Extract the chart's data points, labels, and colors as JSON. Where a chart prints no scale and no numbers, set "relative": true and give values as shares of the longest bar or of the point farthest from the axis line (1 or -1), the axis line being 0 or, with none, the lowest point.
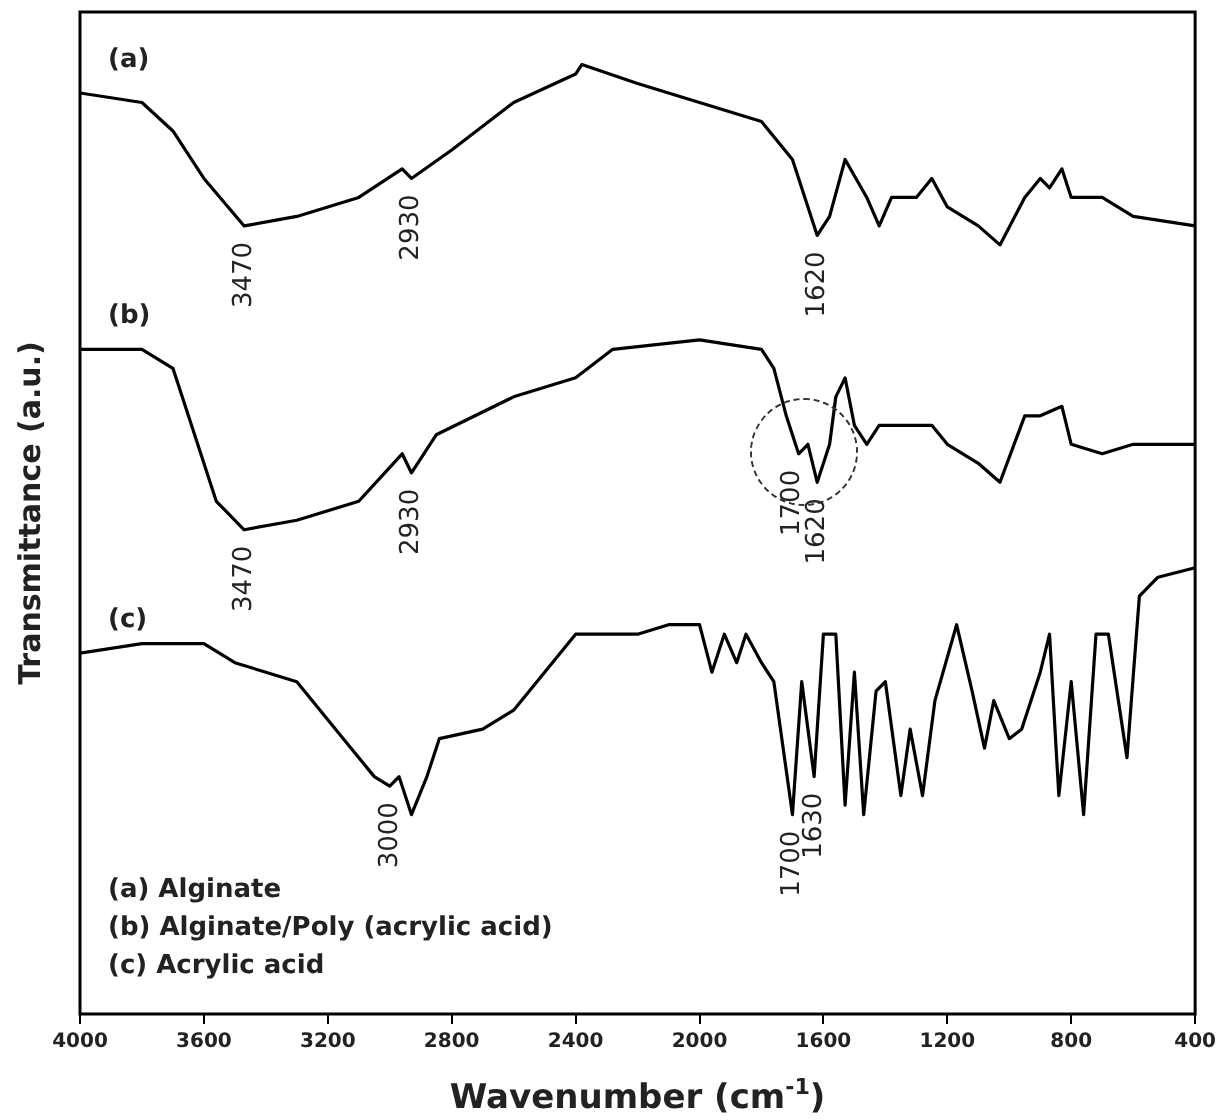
{
  "chart_data": {
    "type": "line",
    "relative": true,
    "xlabel": "Wavenumber (cm$^{-1}$)",
    "ylabel": "Transmittance (a.u.)",
    "xlim": [
      4000,
      400
    ],
    "xticks": [
      4000,
      3600,
      3200,
      2800,
      2400,
      2000,
      1600,
      1200,
      800,
      400
    ],
    "marker": "none",
    "line_style": "solid",
    "series": [
      {
        "name": "(a)",
        "color": "#000000",
        "x": [
          4000,
          3800,
          3700,
          3600,
          3470,
          3300,
          3100,
          2960,
          2930,
          2800,
          2600,
          2400,
          2380,
          2200,
          2000,
          1800,
          1700,
          1620,
          1580,
          1530,
          1460,
          1420,
          1380,
          1300,
          1250,
          1200,
          1100,
          1030,
          950,
          900,
          870,
          830,
          800,
          700,
          600,
          400
        ],
        "values": [
          0.97,
          0.96,
          0.93,
          0.88,
          0.83,
          0.84,
          0.86,
          0.89,
          0.88,
          0.91,
          0.96,
          0.99,
          1,
          0.98,
          0.96,
          0.94,
          0.9,
          0.82,
          0.84,
          0.9,
          0.86,
          0.83,
          0.86,
          0.86,
          0.88,
          0.85,
          0.83,
          0.81,
          0.86,
          0.88,
          0.87,
          0.89,
          0.86,
          0.86,
          0.84,
          0.83
        ]
      },
      {
        "name": "(b)",
        "color": "#000000",
        "x": [
          4000,
          3800,
          3700,
          3620,
          3560,
          3470,
          3300,
          3100,
          2960,
          2930,
          2850,
          2600,
          2400,
          2360,
          2280,
          2000,
          1800,
          1760,
          1720,
          1680,
          1650,
          1620,
          1580,
          1560,
          1530,
          1500,
          1460,
          1420,
          1300,
          1250,
          1200,
          1100,
          1030,
          950,
          900,
          830,
          800,
          700,
          600,
          400
        ],
        "values": [
          0.7,
          0.7,
          0.68,
          0.6,
          0.54,
          0.51,
          0.52,
          0.54,
          0.59,
          0.57,
          0.61,
          0.65,
          0.67,
          0.68,
          0.7,
          0.71,
          0.7,
          0.68,
          0.63,
          0.59,
          0.6,
          0.56,
          0.6,
          0.65,
          0.67,
          0.62,
          0.6,
          0.62,
          0.62,
          0.62,
          0.6,
          0.58,
          0.56,
          0.63,
          0.63,
          0.64,
          0.6,
          0.59,
          0.6,
          0.6
        ]
      },
      {
        "name": "(c)",
        "color": "#000000",
        "x": [
          4000,
          3800,
          3600,
          3500,
          3300,
          3150,
          3050,
          3000,
          2970,
          2930,
          2880,
          2840,
          2700,
          2600,
          2400,
          2200,
          2100,
          2000,
          1960,
          1920,
          1880,
          1850,
          1800,
          1760,
          1700,
          1670,
          1630,
          1600,
          1560,
          1530,
          1500,
          1470,
          1430,
          1400,
          1350,
          1320,
          1280,
          1240,
          1170,
          1120,
          1080,
          1050,
          1000,
          960,
          900,
          870,
          840,
          800,
          760,
          720,
          680,
          620,
          580,
          520,
          400
        ],
        "values": [
          0.38,
          0.39,
          0.39,
          0.37,
          0.35,
          0.29,
          0.25,
          0.24,
          0.25,
          0.21,
          0.25,
          0.29,
          0.3,
          0.32,
          0.4,
          0.4,
          0.41,
          0.41,
          0.36,
          0.4,
          0.37,
          0.4,
          0.37,
          0.35,
          0.21,
          0.35,
          0.25,
          0.4,
          0.4,
          0.22,
          0.36,
          0.21,
          0.34,
          0.35,
          0.23,
          0.3,
          0.23,
          0.33,
          0.41,
          0.34,
          0.28,
          0.33,
          0.29,
          0.3,
          0.36,
          0.4,
          0.23,
          0.35,
          0.21,
          0.4,
          0.4,
          0.27,
          0.44,
          0.46,
          0.47
        ]
      }
    ],
    "annotations": [
      {
        "text": "3470",
        "x": 3470,
        "y": 0.83
      },
      {
        "text": "2930",
        "x": 2930,
        "y": 0.88
      },
      {
        "text": "1620",
        "x": 1620,
        "y": 0.82
      },
      {
        "text": "3470",
        "x": 3470,
        "y": 0.51
      },
      {
        "text": "2930",
        "x": 2930,
        "y": 0.57
      },
      {
        "text": "1700",
        "x": 1700,
        "y": 0.59
      },
      {
        "text": "1620",
        "x": 1620,
        "y": 0.56
      },
      {
        "text": "3000",
        "x": 3000,
        "y": 0.24
      },
      {
        "text": "1700",
        "x": 1700,
        "y": 0.21
      },
      {
        "text": "1630",
        "x": 1630,
        "y": 0.25
      },
      "(a) Alginate",
      "(b) Alginate/Poly (acrylic acid)",
      "(c) Acrylic acid"
    ]
  }
}
